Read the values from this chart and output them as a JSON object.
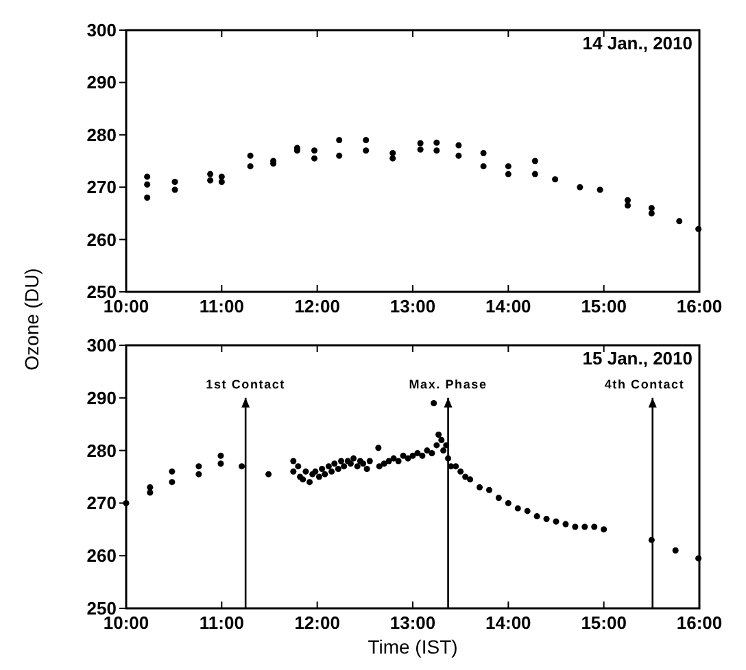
{
  "chart_data": [
    {
      "type": "scatter",
      "title": "14 Jan., 2010",
      "ylabel": "Ozone (DU)",
      "marker": "circle",
      "xlim": [
        10,
        16
      ],
      "xticks": [
        {
          "value": 10,
          "label": "10:00"
        },
        {
          "value": 11,
          "label": "11:00"
        },
        {
          "value": 12,
          "label": "12:00"
        },
        {
          "value": 13,
          "label": "13:00"
        },
        {
          "value": 14,
          "label": "14:00"
        },
        {
          "value": 15,
          "label": "15:00"
        },
        {
          "value": 16,
          "label": "16:00"
        }
      ],
      "ylim": [
        250,
        300
      ],
      "yticks": [
        250,
        260,
        270,
        280,
        290,
        300
      ],
      "series": [
        {
          "color": "#000000",
          "x": [
            10.22,
            10.22,
            10.22,
            10.51,
            10.51,
            10.88,
            10.88,
            11.0,
            11.0,
            11.3,
            11.3,
            11.54,
            11.54,
            11.79,
            11.79,
            11.97,
            11.97,
            12.23,
            12.23,
            12.51,
            12.51,
            12.79,
            12.79,
            13.08,
            13.08,
            13.25,
            13.25,
            13.48,
            13.48,
            13.74,
            13.74,
            14.0,
            14.0,
            14.28,
            14.28,
            14.49,
            14.75,
            14.96,
            15.25,
            15.25,
            15.5,
            15.5,
            15.79,
            15.99
          ],
          "values": [
            272,
            270.5,
            268,
            271,
            269.5,
            272.5,
            271.3,
            272,
            271,
            276,
            274,
            275,
            274.5,
            277.5,
            277,
            277,
            275.5,
            279,
            276,
            279,
            277,
            276.5,
            275.5,
            278.4,
            277.2,
            278.5,
            277,
            278,
            276,
            276.5,
            274,
            274,
            272.5,
            275,
            272.5,
            271.5,
            270,
            269.5,
            267.5,
            266.5,
            266,
            265,
            263.5,
            262
          ]
        }
      ]
    },
    {
      "type": "scatter",
      "title": "15 Jan., 2010",
      "xlabel": "Time (IST)",
      "marker": "circle",
      "xlim": [
        10,
        16
      ],
      "xticks": [
        {
          "value": 10,
          "label": "10:00"
        },
        {
          "value": 11,
          "label": "11:00"
        },
        {
          "value": 12,
          "label": "12:00"
        },
        {
          "value": 13,
          "label": "13:00"
        },
        {
          "value": 14,
          "label": "14:00"
        },
        {
          "value": 15,
          "label": "15:00"
        },
        {
          "value": 16,
          "label": "16:00"
        }
      ],
      "ylim": [
        250,
        300
      ],
      "yticks": [
        250,
        260,
        270,
        280,
        290,
        300
      ],
      "ref_lines": [
        {
          "axis": "x",
          "value": 11.25,
          "label": "1st Contact",
          "color": "#000000"
        },
        {
          "axis": "x",
          "value": 13.37,
          "label": "Max. Phase",
          "color": "#000000"
        },
        {
          "axis": "x",
          "value": 15.51,
          "label": "4th Contact",
          "color": "#000000"
        }
      ],
      "series": [
        {
          "color": "#000000",
          "x": [
            10.0,
            10.25,
            10.25,
            10.48,
            10.48,
            10.76,
            10.76,
            10.99,
            10.99,
            11.21,
            11.49,
            11.75,
            11.75,
            11.8,
            11.82,
            11.85,
            11.88,
            11.92,
            11.95,
            11.98,
            12.02,
            12.05,
            12.08,
            12.12,
            12.15,
            12.18,
            12.22,
            12.25,
            12.28,
            12.32,
            12.35,
            12.38,
            12.42,
            12.45,
            12.48,
            12.52,
            12.55,
            12.64,
            12.65,
            12.7,
            12.75,
            12.8,
            12.85,
            12.9,
            12.95,
            13.0,
            13.05,
            13.1,
            13.15,
            13.2,
            13.22,
            13.25,
            13.27,
            13.3,
            13.32,
            13.35,
            13.37,
            13.4,
            13.45,
            13.5,
            13.55,
            13.6,
            13.7,
            13.8,
            13.9,
            14.0,
            14.1,
            14.2,
            14.3,
            14.4,
            14.5,
            14.6,
            14.7,
            14.8,
            14.9,
            15.0,
            15.5,
            15.75,
            15.99
          ],
          "values": [
            270,
            273,
            272,
            274,
            276,
            277,
            275.5,
            279,
            277.5,
            277,
            275.5,
            278,
            276,
            277,
            275,
            274.5,
            276,
            274,
            275.5,
            276,
            275,
            276.5,
            275.5,
            277,
            276,
            277.5,
            276.5,
            278,
            277,
            278,
            277.5,
            278.5,
            277,
            278,
            277.5,
            276.5,
            278,
            280.5,
            277,
            277.5,
            278,
            278.5,
            278,
            279,
            278.5,
            279,
            279.5,
            279,
            280,
            279.5,
            289,
            281,
            283,
            282,
            280,
            281,
            278.5,
            277,
            277,
            276,
            275,
            274.5,
            273,
            272.5,
            271,
            270,
            269,
            268.5,
            267.5,
            267,
            266.5,
            266,
            265.5,
            265.5,
            265.5,
            265,
            263,
            261,
            259.5
          ]
        }
      ]
    }
  ]
}
